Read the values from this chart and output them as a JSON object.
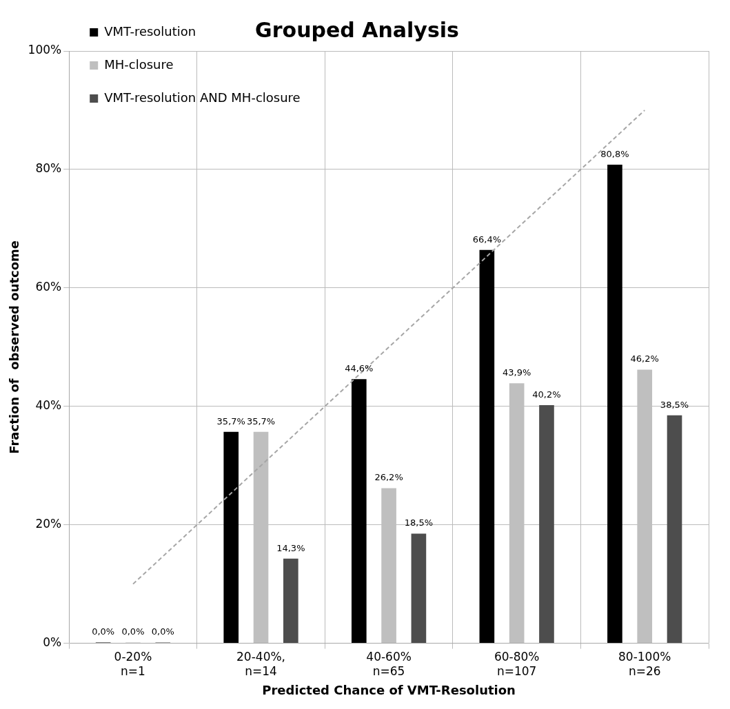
{
  "chart_data": {
    "type": "bar",
    "title": "Grouped Analysis",
    "xlabel": "Predicted Chance of VMT-Resolution",
    "ylabel": "Fraction of  observed outcome",
    "categories": [
      "0-20%\nn=1",
      "20-40%,\nn=14",
      "40-60%\nn=65",
      "60-80%\nn=107",
      "80-100%\nn=26"
    ],
    "series": [
      {
        "name": "VMT-resolution",
        "color": "#000000",
        "values": [
          0,
          35.7,
          44.6,
          66.4,
          80.8
        ],
        "value_labels": [
          "0,0%",
          "35,7%",
          "44,6%",
          "66,4%",
          "80,8%"
        ]
      },
      {
        "name": "MH-closure",
        "color": "#bfbfbf",
        "values": [
          0,
          35.7,
          26.2,
          43.9,
          46.2
        ],
        "value_labels": [
          "0,0%",
          "35,7%",
          "26,2%",
          "43,9%",
          "46,2%"
        ]
      },
      {
        "name": "VMT-resolution AND MH-closure",
        "color": "#4d4d4d",
        "values": [
          0,
          14.3,
          18.5,
          40.2,
          38.5
        ],
        "value_labels": [
          "0,0%",
          "14,3%",
          "18,5%",
          "40,2%",
          "38,5%"
        ]
      },
      {
        "type": "line",
        "color": "#a6a6a6",
        "line_style": "dashed",
        "marker": "none",
        "values": [
          10,
          30,
          50,
          70,
          90
        ]
      }
    ],
    "ylim": [
      0,
      100
    ],
    "yticks": [
      {
        "value": 0,
        "label": "0%"
      },
      {
        "value": 20,
        "label": "20%"
      },
      {
        "value": 40,
        "label": "40%"
      },
      {
        "value": 60,
        "label": "60%"
      },
      {
        "value": 80,
        "label": "80%"
      },
      {
        "value": 100,
        "label": "100%"
      }
    ],
    "grid": true,
    "legend": "top left"
  }
}
